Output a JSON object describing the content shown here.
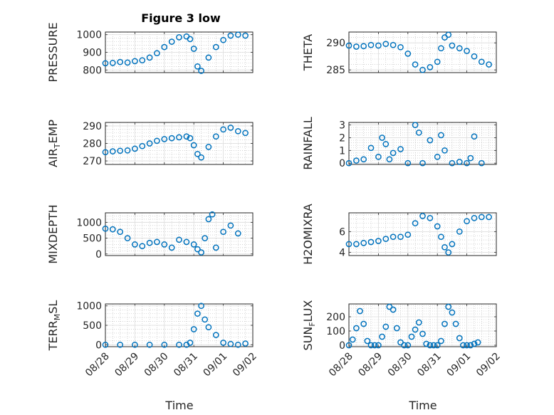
{
  "figure": {
    "title": "Figure 3 low",
    "marker_color": "#0072BD",
    "marker": "circle",
    "x_tick_labels": [
      "08/28",
      "08/29",
      "08/30",
      "08/31",
      "09/01",
      "09/02"
    ],
    "xlabel": "Time"
  },
  "chart_data": [
    {
      "type": "scatter",
      "ylabel": "PRESSURE",
      "title": "Figure 3 low",
      "ylim": [
        785,
        1015
      ],
      "yticks": [
        800,
        900,
        1000
      ],
      "grid": true,
      "series": [
        {
          "x": [
            "2021-08-28T00:00",
            "2021-08-28T06:00",
            "2021-08-28T12:00",
            "2021-08-28T18:00",
            "2021-08-29T00:00",
            "2021-08-29T06:00",
            "2021-08-29T12:00",
            "2021-08-29T18:00",
            "2021-08-30T00:00",
            "2021-08-30T06:00",
            "2021-08-30T12:00",
            "2021-08-30T18:00",
            "2021-08-30T21:00",
            "2021-08-31T00:00",
            "2021-08-31T03:00",
            "2021-08-31T06:00",
            "2021-08-31T12:00",
            "2021-08-31T18:00",
            "2021-09-01T00:00",
            "2021-09-01T06:00",
            "2021-09-01T12:00",
            "2021-09-01T18:00"
          ],
          "y": [
            838,
            840,
            845,
            842,
            850,
            855,
            870,
            895,
            930,
            960,
            985,
            990,
            975,
            920,
            820,
            795,
            870,
            930,
            970,
            995,
            1000,
            995
          ]
        }
      ]
    },
    {
      "type": "scatter",
      "ylabel": "THETA",
      "ylim": [
        284.5,
        292
      ],
      "yticks": [
        285,
        290
      ],
      "grid": true,
      "series": [
        {
          "x": [
            "2021-08-28T00:00",
            "2021-08-28T06:00",
            "2021-08-28T12:00",
            "2021-08-28T18:00",
            "2021-08-29T00:00",
            "2021-08-29T06:00",
            "2021-08-29T12:00",
            "2021-08-29T18:00",
            "2021-08-30T00:00",
            "2021-08-30T06:00",
            "2021-08-30T12:00",
            "2021-08-30T18:00",
            "2021-08-31T00:00",
            "2021-08-31T03:00",
            "2021-08-31T06:00",
            "2021-08-31T09:00",
            "2021-08-31T12:00",
            "2021-08-31T18:00",
            "2021-09-01T00:00",
            "2021-09-01T06:00",
            "2021-09-01T12:00",
            "2021-09-01T18:00"
          ],
          "y": [
            289.5,
            289.3,
            289.4,
            289.6,
            289.5,
            289.8,
            289.6,
            289.2,
            288.0,
            286.0,
            285.0,
            285.5,
            286.5,
            289.0,
            291.0,
            291.5,
            289.5,
            289.0,
            288.5,
            287.5,
            286.5,
            286.0
          ]
        }
      ]
    },
    {
      "type": "scatter",
      "ylabel": "AIR_TEMP",
      "ylim": [
        268,
        292
      ],
      "yticks": [
        270,
        280,
        290
      ],
      "grid": true,
      "series": [
        {
          "x": [
            "2021-08-28T00:00",
            "2021-08-28T06:00",
            "2021-08-28T12:00",
            "2021-08-28T18:00",
            "2021-08-29T00:00",
            "2021-08-29T06:00",
            "2021-08-29T12:00",
            "2021-08-29T18:00",
            "2021-08-30T00:00",
            "2021-08-30T06:00",
            "2021-08-30T12:00",
            "2021-08-30T18:00",
            "2021-08-30T21:00",
            "2021-08-31T00:00",
            "2021-08-31T03:00",
            "2021-08-31T06:00",
            "2021-08-31T12:00",
            "2021-08-31T18:00",
            "2021-09-01T00:00",
            "2021-09-01T06:00",
            "2021-09-01T12:00",
            "2021-09-01T18:00"
          ],
          "y": [
            275,
            275.5,
            275.8,
            276,
            277,
            278.5,
            280,
            281.5,
            282.5,
            283,
            283.5,
            284,
            283,
            279,
            274,
            272,
            278,
            284,
            288,
            289,
            287,
            286
          ]
        }
      ]
    },
    {
      "type": "scatter",
      "ylabel": "RAINFALL",
      "ylim": [
        -0.1,
        3.2
      ],
      "yticks": [
        0,
        1,
        2,
        3
      ],
      "grid": true,
      "series": [
        {
          "x": [
            "2021-08-28T00:00",
            "2021-08-28T06:00",
            "2021-08-28T12:00",
            "2021-08-28T18:00",
            "2021-08-29T00:00",
            "2021-08-29T03:00",
            "2021-08-29T06:00",
            "2021-08-29T09:00",
            "2021-08-29T12:00",
            "2021-08-29T18:00",
            "2021-08-30T00:00",
            "2021-08-30T06:00",
            "2021-08-30T09:00",
            "2021-08-30T12:00",
            "2021-08-30T18:00",
            "2021-08-31T00:00",
            "2021-08-31T03:00",
            "2021-08-31T06:00",
            "2021-08-31T12:00",
            "2021-08-31T18:00",
            "2021-09-01T00:00",
            "2021-09-01T03:00",
            "2021-09-01T06:00",
            "2021-09-01T12:00"
          ],
          "y": [
            0,
            0.2,
            0.3,
            1.2,
            0.5,
            2.0,
            1.5,
            0.3,
            0.8,
            1.1,
            0,
            3.0,
            2.4,
            0,
            1.8,
            0.5,
            2.2,
            1.0,
            0,
            0.1,
            0,
            0.4,
            2.1,
            0
          ]
        }
      ]
    },
    {
      "type": "scatter",
      "ylabel": "MIXDEPTH",
      "ylim": [
        -50,
        1300
      ],
      "yticks": [
        0,
        500,
        1000
      ],
      "grid": true,
      "series": [
        {
          "x": [
            "2021-08-28T00:00",
            "2021-08-28T06:00",
            "2021-08-28T12:00",
            "2021-08-28T18:00",
            "2021-08-29T00:00",
            "2021-08-29T06:00",
            "2021-08-29T12:00",
            "2021-08-29T18:00",
            "2021-08-30T00:00",
            "2021-08-30T06:00",
            "2021-08-30T12:00",
            "2021-08-30T18:00",
            "2021-08-31T00:00",
            "2021-08-31T03:00",
            "2021-08-31T06:00",
            "2021-08-31T09:00",
            "2021-08-31T12:00",
            "2021-08-31T15:00",
            "2021-08-31T18:00",
            "2021-09-01T00:00",
            "2021-09-01T06:00",
            "2021-09-01T12:00"
          ],
          "y": [
            800,
            780,
            700,
            500,
            300,
            250,
            350,
            380,
            300,
            200,
            450,
            380,
            300,
            150,
            50,
            500,
            1100,
            1250,
            200,
            700,
            900,
            650
          ]
        }
      ]
    },
    {
      "type": "scatter",
      "ylabel": "H2OMIXRA",
      "ylim": [
        3.7,
        7.8
      ],
      "yticks": [
        4,
        6
      ],
      "grid": true,
      "series": [
        {
          "x": [
            "2021-08-28T00:00",
            "2021-08-28T06:00",
            "2021-08-28T12:00",
            "2021-08-28T18:00",
            "2021-08-29T00:00",
            "2021-08-29T06:00",
            "2021-08-29T12:00",
            "2021-08-29T18:00",
            "2021-08-30T00:00",
            "2021-08-30T06:00",
            "2021-08-30T12:00",
            "2021-08-30T18:00",
            "2021-08-31T00:00",
            "2021-08-31T03:00",
            "2021-08-31T06:00",
            "2021-08-31T09:00",
            "2021-08-31T12:00",
            "2021-08-31T18:00",
            "2021-09-01T00:00",
            "2021-09-01T06:00",
            "2021-09-01T12:00",
            "2021-09-01T18:00"
          ],
          "y": [
            4.8,
            4.8,
            4.9,
            5.0,
            5.1,
            5.3,
            5.5,
            5.5,
            5.7,
            6.8,
            7.5,
            7.3,
            6.5,
            5.5,
            4.5,
            4.0,
            4.8,
            6.0,
            7.0,
            7.3,
            7.4,
            7.4
          ]
        }
      ]
    },
    {
      "type": "scatter",
      "ylabel": "TERR_MSL",
      "ylim": [
        -50,
        1050
      ],
      "yticks": [
        0,
        500,
        1000
      ],
      "grid": true,
      "series": [
        {
          "x": [
            "2021-08-28T00:00",
            "2021-08-28T12:00",
            "2021-08-29T00:00",
            "2021-08-29T12:00",
            "2021-08-30T00:00",
            "2021-08-30T12:00",
            "2021-08-30T18:00",
            "2021-08-30T21:00",
            "2021-08-31T00:00",
            "2021-08-31T03:00",
            "2021-08-31T06:00",
            "2021-08-31T09:00",
            "2021-08-31T12:00",
            "2021-08-31T18:00",
            "2021-09-01T00:00",
            "2021-09-01T06:00",
            "2021-09-01T12:00",
            "2021-09-01T18:00"
          ],
          "y": [
            0,
            0,
            0,
            0,
            0,
            0,
            0,
            50,
            400,
            800,
            1000,
            650,
            450,
            250,
            50,
            20,
            0,
            30
          ]
        }
      ]
    },
    {
      "type": "scatter",
      "ylabel": "SUN_FLUX",
      "ylim": [
        -10,
        290
      ],
      "yticks": [
        0,
        100,
        200
      ],
      "grid": true,
      "series": [
        {
          "x": [
            "2021-08-28T00:00",
            "2021-08-28T03:00",
            "2021-08-28T06:00",
            "2021-08-28T09:00",
            "2021-08-28T12:00",
            "2021-08-28T15:00",
            "2021-08-28T18:00",
            "2021-08-28T21:00",
            "2021-08-29T00:00",
            "2021-08-29T03:00",
            "2021-08-29T06:00",
            "2021-08-29T09:00",
            "2021-08-29T12:00",
            "2021-08-29T15:00",
            "2021-08-29T18:00",
            "2021-08-29T21:00",
            "2021-08-30T00:00",
            "2021-08-30T03:00",
            "2021-08-30T06:00",
            "2021-08-30T09:00",
            "2021-08-30T12:00",
            "2021-08-30T15:00",
            "2021-08-30T18:00",
            "2021-08-30T21:00",
            "2021-08-31T00:00",
            "2021-08-31T03:00",
            "2021-08-31T06:00",
            "2021-08-31T09:00",
            "2021-08-31T12:00",
            "2021-08-31T15:00",
            "2021-08-31T18:00",
            "2021-08-31T21:00",
            "2021-09-01T00:00",
            "2021-09-01T03:00",
            "2021-09-01T06:00",
            "2021-09-01T09:00"
          ],
          "y": [
            0,
            40,
            120,
            240,
            150,
            30,
            0,
            0,
            0,
            60,
            130,
            270,
            250,
            120,
            20,
            0,
            0,
            60,
            110,
            160,
            80,
            10,
            0,
            0,
            0,
            30,
            150,
            270,
            230,
            150,
            50,
            0,
            0,
            0,
            10,
            20
          ]
        }
      ]
    }
  ]
}
